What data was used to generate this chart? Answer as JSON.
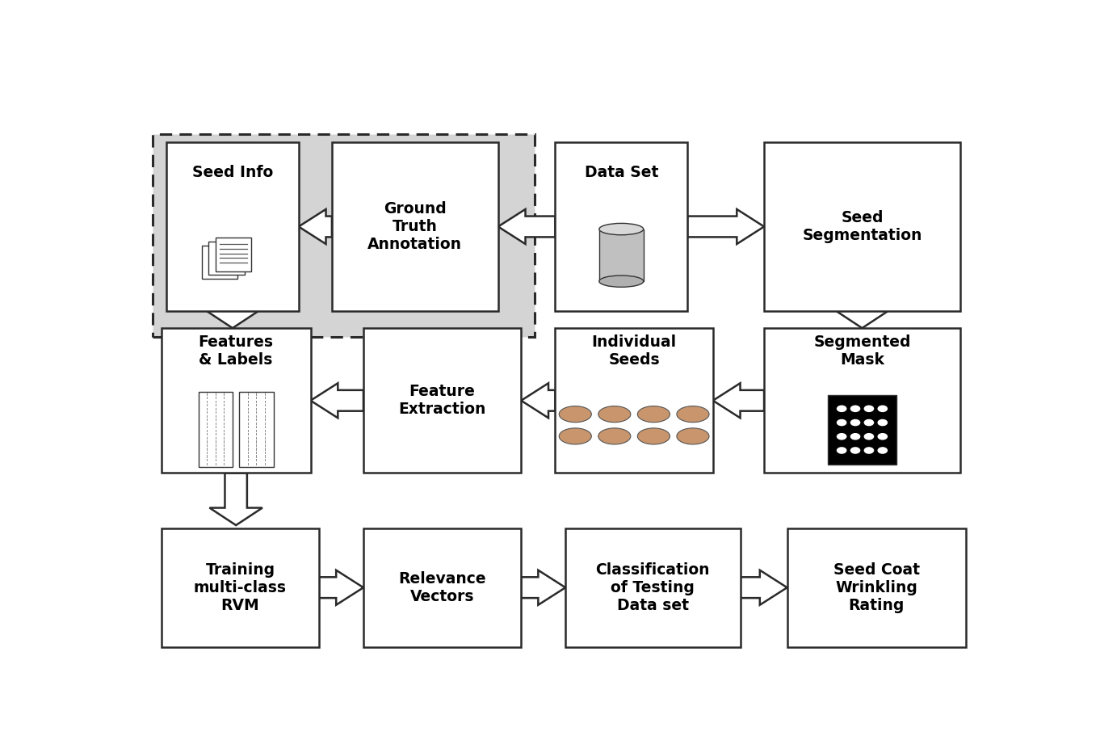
{
  "fig_width": 13.62,
  "fig_height": 9.32,
  "bg_color": "#ffffff",
  "lw": 1.8,
  "fs": 13.5,
  "afc": "#ffffff",
  "aec": "#2a2a2a",
  "seed_color": "#c8956c",
  "SI": [
    0.034,
    0.62,
    0.155,
    0.29
  ],
  "GT": [
    0.228,
    0.62,
    0.195,
    0.29
  ],
  "DS": [
    0.49,
    0.62,
    0.155,
    0.29
  ],
  "SS": [
    0.735,
    0.62,
    0.23,
    0.29
  ],
  "FL": [
    0.028,
    0.34,
    0.175,
    0.25
  ],
  "FE": [
    0.265,
    0.34,
    0.185,
    0.25
  ],
  "IS": [
    0.49,
    0.34,
    0.185,
    0.25
  ],
  "SM": [
    0.735,
    0.34,
    0.23,
    0.25
  ],
  "TR": [
    0.028,
    0.04,
    0.185,
    0.205
  ],
  "RV": [
    0.265,
    0.04,
    0.185,
    0.205
  ],
  "CT": [
    0.502,
    0.04,
    0.205,
    0.205
  ],
  "SC": [
    0.762,
    0.04,
    0.21,
    0.205
  ],
  "dash": [
    0.018,
    0.575,
    0.448,
    0.35
  ]
}
